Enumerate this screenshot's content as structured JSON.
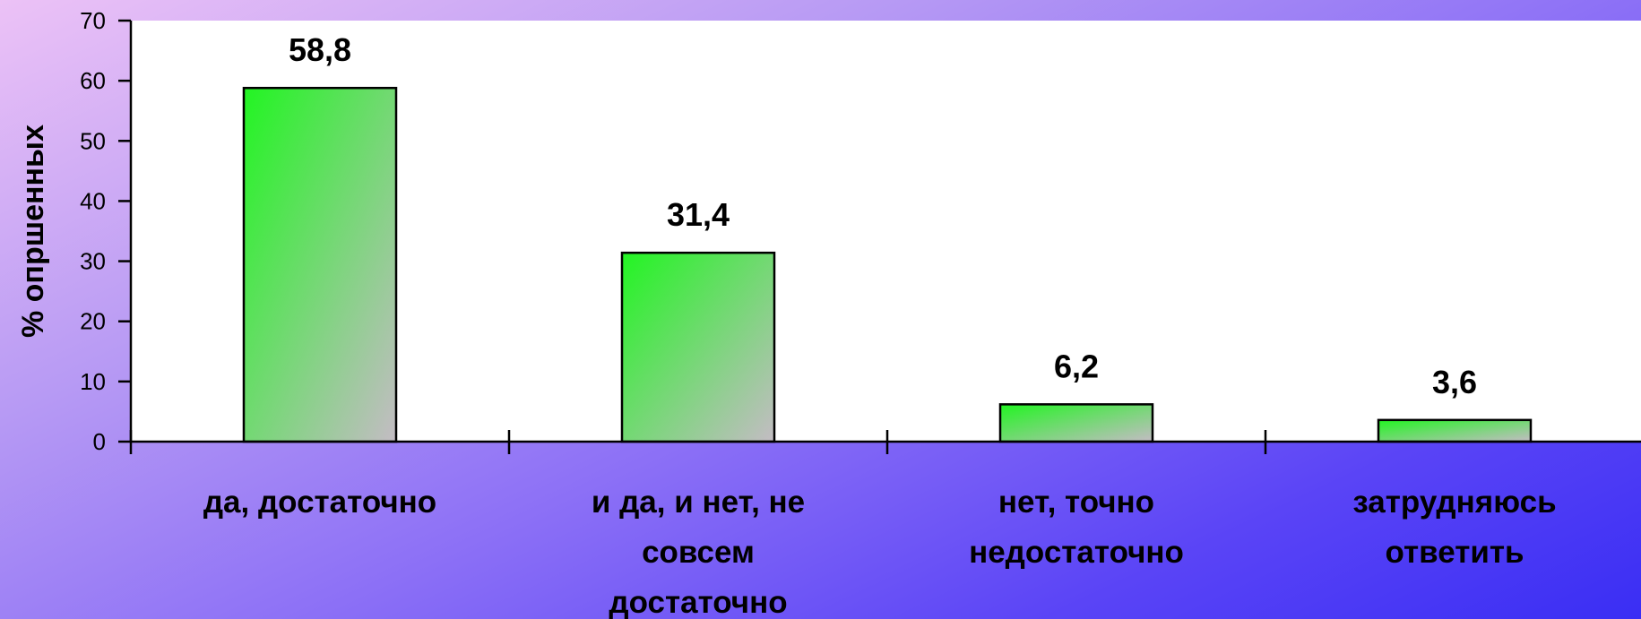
{
  "chart_data": {
    "type": "bar",
    "title": "",
    "xlabel": "",
    "ylabel": "% опршенных",
    "ylim": [
      0,
      70
    ],
    "yticks": [
      0,
      10,
      20,
      30,
      40,
      50,
      60,
      70
    ],
    "categories": [
      [
        "да, достаточно"
      ],
      [
        "и да, и нет, не",
        "совсем",
        "достаточно"
      ],
      [
        "нет, точно",
        "недостаточно"
      ],
      [
        "затрудняюсь",
        "ответить"
      ]
    ],
    "values": [
      58.8,
      31.4,
      6.2,
      3.6
    ],
    "data_labels": [
      "58,8",
      "31,4",
      "6,2",
      "3,6"
    ],
    "grid": false,
    "legend": "none"
  },
  "colors": {
    "bar_fill_start": "#22f522",
    "bar_fill_end": "#c4bcc4",
    "bar_stroke": "#000000",
    "plot_background": "#ffffff"
  }
}
